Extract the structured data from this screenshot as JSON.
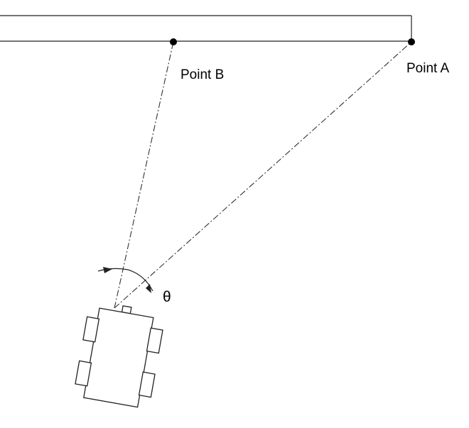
{
  "diagram": {
    "labels": {
      "point_a": "Point A",
      "point_b": "Point B",
      "angle": "θ"
    },
    "colors": {
      "line": "#222222",
      "background": "#ffffff"
    }
  }
}
